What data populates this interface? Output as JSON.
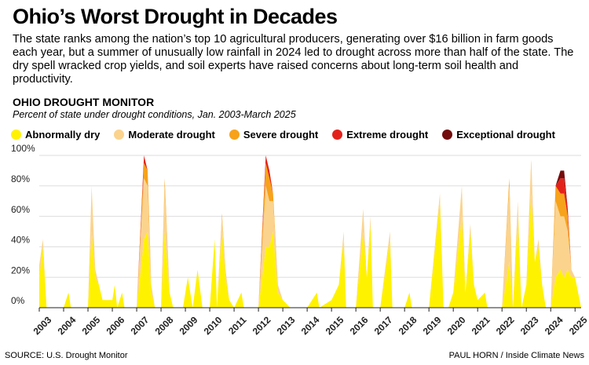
{
  "chart_data": {
    "type": "stacked_area",
    "title": "Ohio’s Worst Drought in Decades",
    "subtitle": "The state ranks among the nation’s top 10 agricultural producers, generating over $16 billion in farm goods each year, but a summer of unusually low rainfall in 2024 led to drought across more than half of the state. The dry spell wracked crop yields, and soil experts have raised concerns about long-term soil health and productivity.",
    "chart_title": "OHIO DROUGHT MONITOR",
    "chart_subtitle": "Percent of state under drought conditions, Jan. 2003-March 2025",
    "source": "SOURCE: U.S. Drought Monitor",
    "credit": "PAUL HORN / Inside Climate News",
    "x": [
      2003.0,
      2003.15,
      2003.3,
      2004.0,
      2004.2,
      2004.3,
      2005.0,
      2005.15,
      2005.3,
      2005.45,
      2005.6,
      2006.0,
      2006.1,
      2006.2,
      2006.4,
      2006.5,
      2007.0,
      2007.3,
      2007.45,
      2007.6,
      2007.75,
      2008.0,
      2008.15,
      2008.35,
      2008.5,
      2008.9,
      2009.1,
      2009.3,
      2009.5,
      2009.7,
      2010.0,
      2010.2,
      2010.3,
      2010.5,
      2010.65,
      2010.8,
      2011.0,
      2011.3,
      2011.4,
      2012.0,
      2012.3,
      2012.45,
      2012.6,
      2012.8,
      2013.0,
      2013.3,
      2014.0,
      2014.4,
      2014.5,
      2015.0,
      2015.3,
      2015.5,
      2015.6,
      2016.0,
      2016.3,
      2016.45,
      2016.6,
      2016.7,
      2017.0,
      2017.4,
      2017.5,
      2018.0,
      2018.2,
      2018.3,
      2019.0,
      2019.45,
      2019.6,
      2019.8,
      2020.0,
      2020.35,
      2020.5,
      2020.7,
      2020.85,
      2021.0,
      2021.3,
      2021.4,
      2022.0,
      2022.3,
      2022.45,
      2022.65,
      2022.8,
      2023.0,
      2023.2,
      2023.35,
      2023.5,
      2023.65,
      2023.8,
      2024.0,
      2024.2,
      2024.4,
      2024.55,
      2024.7,
      2024.85,
      2025.0,
      2025.25
    ],
    "series": [
      {
        "name": "Abnormally dry",
        "color": "#fff200",
        "values": [
          20,
          40,
          0,
          0,
          10,
          0,
          0,
          50,
          20,
          15,
          5,
          5,
          15,
          0,
          10,
          0,
          0,
          45,
          50,
          10,
          0,
          0,
          50,
          10,
          0,
          0,
          20,
          0,
          25,
          0,
          0,
          45,
          0,
          50,
          20,
          5,
          0,
          10,
          0,
          0,
          40,
          40,
          50,
          10,
          5,
          0,
          0,
          10,
          0,
          5,
          15,
          45,
          0,
          0,
          50,
          20,
          55,
          0,
          0,
          45,
          0,
          0,
          10,
          0,
          0,
          70,
          0,
          0,
          10,
          60,
          10,
          50,
          15,
          5,
          10,
          0,
          0,
          30,
          0,
          60,
          0,
          15,
          75,
          30,
          40,
          15,
          0,
          0,
          20,
          25,
          20,
          25,
          20,
          20,
          0
        ]
      },
      {
        "name": "Moderate drought",
        "color": "#fbd38d",
        "values": [
          8,
          5,
          0,
          0,
          0,
          0,
          0,
          30,
          5,
          0,
          0,
          0,
          0,
          0,
          0,
          0,
          0,
          40,
          30,
          5,
          0,
          0,
          30,
          0,
          0,
          0,
          0,
          0,
          0,
          0,
          0,
          0,
          0,
          10,
          5,
          0,
          0,
          0,
          0,
          0,
          40,
          30,
          20,
          5,
          0,
          0,
          0,
          0,
          0,
          0,
          0,
          5,
          0,
          0,
          15,
          0,
          5,
          0,
          0,
          5,
          0,
          0,
          0,
          0,
          0,
          5,
          0,
          0,
          0,
          20,
          0,
          5,
          0,
          0,
          0,
          0,
          0,
          50,
          0,
          10,
          0,
          0,
          20,
          0,
          5,
          0,
          0,
          0,
          50,
          35,
          40,
          25,
          5,
          0,
          0
        ]
      },
      {
        "name": "Severe drought",
        "color": "#f7a21b",
        "values": [
          0,
          0,
          0,
          0,
          0,
          0,
          0,
          0,
          0,
          0,
          0,
          0,
          0,
          0,
          0,
          0,
          0,
          10,
          10,
          0,
          0,
          0,
          5,
          0,
          0,
          0,
          0,
          0,
          0,
          0,
          0,
          0,
          0,
          2,
          0,
          0,
          0,
          0,
          0,
          0,
          15,
          15,
          5,
          0,
          0,
          0,
          0,
          0,
          0,
          0,
          0,
          0,
          0,
          0,
          0,
          0,
          0,
          0,
          0,
          0,
          0,
          0,
          0,
          0,
          0,
          0,
          0,
          0,
          0,
          0,
          0,
          0,
          0,
          0,
          0,
          0,
          0,
          5,
          0,
          0,
          0,
          0,
          2,
          0,
          0,
          0,
          0,
          0,
          10,
          15,
          15,
          10,
          0,
          0,
          0
        ]
      },
      {
        "name": "Extreme drought",
        "color": "#e3231b",
        "values": [
          0,
          0,
          0,
          0,
          0,
          0,
          0,
          0,
          0,
          0,
          0,
          0,
          0,
          0,
          0,
          0,
          0,
          5,
          0,
          0,
          0,
          0,
          0,
          0,
          0,
          0,
          0,
          0,
          0,
          0,
          0,
          0,
          0,
          0,
          0,
          0,
          0,
          0,
          0,
          0,
          5,
          5,
          0,
          0,
          0,
          0,
          0,
          0,
          0,
          0,
          0,
          0,
          0,
          0,
          0,
          0,
          0,
          0,
          0,
          0,
          0,
          0,
          0,
          0,
          0,
          0,
          0,
          0,
          0,
          0,
          0,
          0,
          0,
          0,
          0,
          0,
          0,
          0,
          0,
          0,
          0,
          0,
          0,
          0,
          0,
          0,
          0,
          0,
          0,
          10,
          10,
          5,
          0,
          0,
          0
        ]
      },
      {
        "name": "Exceptional drought",
        "color": "#730c0c",
        "values": [
          0,
          0,
          0,
          0,
          0,
          0,
          0,
          0,
          0,
          0,
          0,
          0,
          0,
          0,
          0,
          0,
          0,
          0,
          0,
          0,
          0,
          0,
          0,
          0,
          0,
          0,
          0,
          0,
          0,
          0,
          0,
          0,
          0,
          0,
          0,
          0,
          0,
          0,
          0,
          0,
          0,
          0,
          0,
          0,
          0,
          0,
          0,
          0,
          0,
          0,
          0,
          0,
          0,
          0,
          0,
          0,
          0,
          0,
          0,
          0,
          0,
          0,
          0,
          0,
          0,
          0,
          0,
          0,
          0,
          0,
          0,
          0,
          0,
          0,
          0,
          0,
          0,
          0,
          0,
          0,
          0,
          0,
          0,
          0,
          0,
          0,
          0,
          0,
          0,
          5,
          5,
          0,
          0,
          0,
          0
        ]
      }
    ],
    "xlim": [
      2003,
      2025.25
    ],
    "xticks": [
      2003,
      2004,
      2005,
      2006,
      2007,
      2008,
      2009,
      2010,
      2011,
      2012,
      2013,
      2014,
      2015,
      2016,
      2017,
      2018,
      2019,
      2020,
      2021,
      2022,
      2023,
      2024,
      2025
    ],
    "ylim": [
      0,
      100
    ],
    "yticks": [
      {
        "value": 0,
        "label": "0%"
      },
      {
        "value": 20,
        "label": "20%"
      },
      {
        "value": 40,
        "label": "40%"
      },
      {
        "value": 60,
        "label": "60%"
      },
      {
        "value": 80,
        "label": "80%"
      },
      {
        "value": 100,
        "label": "100%"
      }
    ],
    "grid": true
  }
}
